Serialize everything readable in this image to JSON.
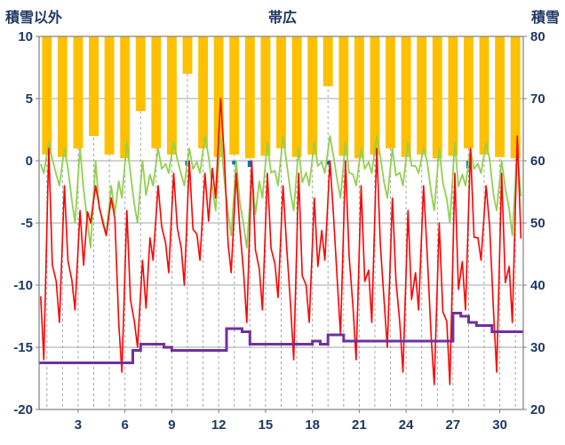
{
  "header": {
    "left_axis_title": "積雪以外",
    "title": "帯広",
    "right_axis_title": "積雪"
  },
  "chart_data": {
    "type": "line",
    "title": "帯広",
    "station": "帯広",
    "left_axis": {
      "label": "積雪以外",
      "min": -20,
      "max": 10,
      "ticks": [
        10,
        5,
        0,
        -5,
        -10,
        -15,
        -20
      ]
    },
    "right_axis": {
      "label": "積雪",
      "min": 20,
      "max": 80,
      "ticks": [
        80,
        70,
        60,
        50,
        40,
        30,
        20
      ]
    },
    "x_axis": {
      "days": 31,
      "tick_labels": [
        3,
        6,
        9,
        12,
        15,
        18,
        21,
        24,
        27,
        30
      ]
    },
    "grid": {
      "h_color": "#A6A6A6",
      "v_color": "#A6A6A6",
      "v_dashed": true,
      "border_color": "#7F7F7F"
    },
    "series": [
      {
        "name": "sunshine-bars",
        "type": "bar-from-top",
        "axis": "left",
        "color": "#FFC000",
        "comment": "bar length in left-axis units hanging from top (10) down",
        "values": [
          9.5,
          9.7,
          9.0,
          8.0,
          9.5,
          9.8,
          6.0,
          9.0,
          9.5,
          3.0,
          9.0,
          9.7,
          9.5,
          9.8,
          9.6,
          9.0,
          9.7,
          9.5,
          4.0,
          9.6,
          9.8,
          9.5,
          9.0,
          9.7,
          9.5,
          9.8,
          9.6,
          9.0,
          9.5,
          9.7,
          9.8
        ]
      },
      {
        "name": "precipitation-ticks",
        "type": "bar-down-from-zero",
        "axis": "left",
        "color": "#0070C0",
        "days": [
          10,
          13,
          14,
          19,
          28
        ],
        "values": [
          0.4,
          0.3,
          0.5,
          0.3,
          0.6
        ]
      },
      {
        "name": "ground-temperature-line",
        "type": "daily-line",
        "axis": "left",
        "color": "#92D050",
        "daily_lo_hi": [
          [
            -1,
            1.5
          ],
          [
            -2,
            1
          ],
          [
            -5,
            1
          ],
          [
            -7,
            0
          ],
          [
            -6,
            -2
          ],
          [
            -3,
            1.5
          ],
          [
            -5,
            0
          ],
          [
            -2,
            1
          ],
          [
            -1,
            1.5
          ],
          [
            -2,
            1
          ],
          [
            -1,
            2
          ],
          [
            -4,
            2
          ],
          [
            -6,
            0
          ],
          [
            -7,
            -1
          ],
          [
            -3,
            1.5
          ],
          [
            -2,
            2
          ],
          [
            -4,
            1
          ],
          [
            -2,
            1.5
          ],
          [
            -1,
            2
          ],
          [
            -3,
            1.5
          ],
          [
            -2,
            1
          ],
          [
            -1,
            2
          ],
          [
            -3,
            1
          ],
          [
            -2,
            1.5
          ],
          [
            -1,
            1
          ],
          [
            -4,
            1
          ],
          [
            -5,
            1.5
          ],
          [
            -2,
            1
          ],
          [
            -1,
            1.5
          ],
          [
            -4,
            0
          ],
          [
            -6,
            1
          ]
        ]
      },
      {
        "name": "air-temperature-line",
        "type": "daily-line",
        "axis": "left",
        "color": "#FF0000",
        "daily_lo_hi": [
          [
            -16,
            1
          ],
          [
            -13,
            -2
          ],
          [
            -12,
            -4
          ],
          [
            -5,
            -2
          ],
          [
            -6,
            -3
          ],
          [
            -17,
            -4
          ],
          [
            -15,
            -8
          ],
          [
            -8,
            -2
          ],
          [
            -9,
            -1
          ],
          [
            -10,
            0
          ],
          [
            -8,
            -1
          ],
          [
            -3,
            5
          ],
          [
            -9,
            -1
          ],
          [
            -13,
            0
          ],
          [
            -12,
            -1
          ],
          [
            -11,
            -2
          ],
          [
            -16,
            -1
          ],
          [
            -13,
            -3
          ],
          [
            -8,
            0
          ],
          [
            -14,
            0
          ],
          [
            -16,
            -2
          ],
          [
            -13,
            1
          ],
          [
            -15,
            -3
          ],
          [
            -17,
            -4
          ],
          [
            -12,
            -2
          ],
          [
            -18,
            -5
          ],
          [
            -18,
            -1
          ],
          [
            -12,
            1
          ],
          [
            -8,
            -2
          ],
          [
            -17,
            -1
          ],
          [
            -13,
            2
          ]
        ]
      },
      {
        "name": "snow-depth-line",
        "type": "step-line",
        "axis": "right",
        "color": "#7030A0",
        "comment": "x in day units (1..32), y in cm on right axis",
        "points": [
          [
            1,
            27.5
          ],
          [
            7,
            27.5
          ],
          [
            7,
            29.5
          ],
          [
            7.5,
            29.5
          ],
          [
            7.5,
            30.5
          ],
          [
            9,
            30.5
          ],
          [
            9,
            30
          ],
          [
            9.5,
            30
          ],
          [
            9.5,
            29.5
          ],
          [
            13,
            29.5
          ],
          [
            13,
            33
          ],
          [
            14,
            33
          ],
          [
            14,
            32.5
          ],
          [
            14.5,
            32.5
          ],
          [
            14.5,
            30.5
          ],
          [
            18.5,
            30.5
          ],
          [
            18.5,
            31
          ],
          [
            19,
            31
          ],
          [
            19,
            30.5
          ],
          [
            19.5,
            30.5
          ],
          [
            19.5,
            32
          ],
          [
            20.5,
            32
          ],
          [
            20.5,
            31
          ],
          [
            27.5,
            31
          ],
          [
            27.5,
            35.5
          ],
          [
            28,
            35.5
          ],
          [
            28,
            35
          ],
          [
            28.5,
            35
          ],
          [
            28.5,
            34
          ],
          [
            29,
            34
          ],
          [
            29,
            33.5
          ],
          [
            30,
            33.5
          ],
          [
            30,
            32.5
          ],
          [
            32,
            32.5
          ]
        ]
      }
    ]
  }
}
